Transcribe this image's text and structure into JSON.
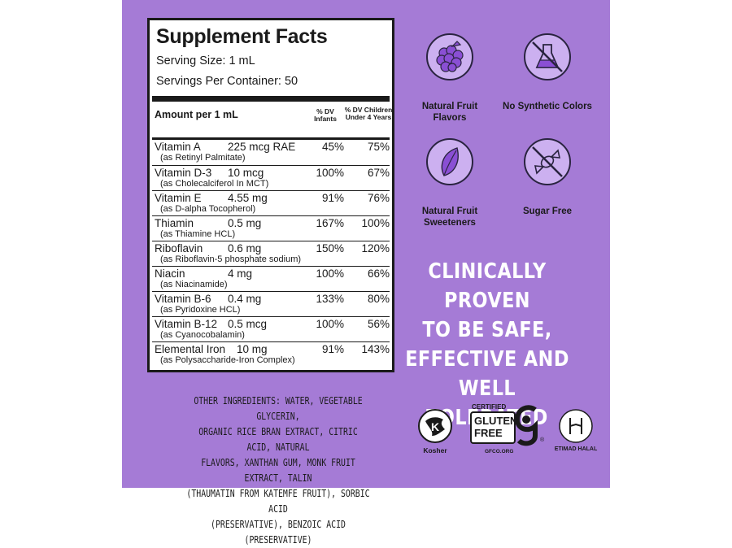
{
  "facts": {
    "title": "Supplement Facts",
    "serving_size": "Serving Size: 1 mL",
    "servings_per_container": "Servings Per Container: 50",
    "amount_header": "Amount per 1 mL",
    "dv_infants_header": "% DV Infants",
    "dv_children_header": "% DV Children Under 4 Years",
    "rows": [
      {
        "name": "Vitamin A",
        "amount": "225 mcg RAE",
        "source": "(as Retinyl Palmitate)",
        "infants": "45%",
        "children": "75%"
      },
      {
        "name": "Vitamin D-3",
        "amount": "10 mcg",
        "source": "(as Cholecalciferol In MCT)",
        "infants": "100%",
        "children": "67%"
      },
      {
        "name": "Vitamin E",
        "amount": "4.55 mg",
        "source": "(as D-alpha Tocopherol)",
        "infants": "91%",
        "children": "76%"
      },
      {
        "name": "Thiamin",
        "amount": "0.5 mg",
        "source": "(as Thiamine HCL)",
        "infants": "167%",
        "children": "100%"
      },
      {
        "name": "Riboflavin",
        "amount": "0.6 mg",
        "source": "(as Riboflavin-5 phosphate sodium)",
        "infants": "150%",
        "children": "120%"
      },
      {
        "name": "Niacin",
        "amount": "4 mg",
        "source": "(as Niacinamide)",
        "infants": "100%",
        "children": "66%"
      },
      {
        "name": "Vitamin B-6",
        "amount": "0.4 mg",
        "source": "(as Pyridoxine HCL)",
        "infants": "133%",
        "children": "80%"
      },
      {
        "name": "Vitamin B-12",
        "amount": "0.5 mcg",
        "source": "(as Cyanocobalamin)",
        "infants": "100%",
        "children": "56%"
      },
      {
        "name": "Elemental Iron",
        "amount": "10 mg",
        "source": "(as Polysaccharide-Iron Complex)",
        "infants": "91%",
        "children": "143%"
      }
    ]
  },
  "badges": [
    {
      "label": "Natural Fruit Flavors",
      "icon": "berry-icon"
    },
    {
      "label": "No Synthetic Colors",
      "icon": "no-flask-icon"
    },
    {
      "label": "Natural Fruit Sweeteners",
      "icon": "leaf-icon"
    },
    {
      "label": "Sugar Free",
      "icon": "no-candy-icon"
    }
  ],
  "claim": [
    "CLINICALLY PROVEN",
    "TO BE SAFE,",
    "EFFECTIVE AND",
    "WELL TOLERATED"
  ],
  "other_ingredients": [
    "OTHER INGREDIENTS: WATER, VEGETABLE GLYCERIN,",
    "ORGANIC RICE BRAN EXTRACT, CITRIC ACID, NATURAL",
    "FLAVORS, XANTHAN GUM, MONK FRUIT EXTRACT, TALIN",
    "(THAUMATIN FROM KATEMFE FRUIT), SORBIC ACID",
    "(PRESERVATIVE), BENZOIC ACID (PRESERVATIVE)"
  ],
  "certifications": {
    "kosher": "Kosher",
    "gluten_certified": "CERTIFIED",
    "gluten_line1": "GLUTEN",
    "gluten_line2": "FREE",
    "gluten_registered": "®",
    "gluten_site": "GFCO.ORG",
    "halal": "ETIMAD HALAL"
  },
  "colors": {
    "panel": "#a57bd6",
    "icon_fill": "#ccb0f0",
    "icon_art": "#8a4fd4"
  }
}
